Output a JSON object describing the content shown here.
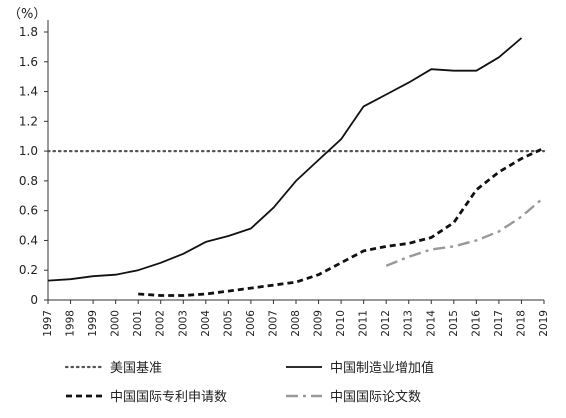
{
  "chart_data": {
    "type": "line",
    "unit_label": "（%）",
    "x": [
      "1997",
      "1998",
      "1999",
      "2000",
      "2001",
      "2002",
      "2003",
      "2004",
      "2005",
      "2006",
      "2007",
      "2008",
      "2009",
      "2010",
      "2011",
      "2012",
      "2013",
      "2014",
      "2015",
      "2016",
      "2017",
      "2018",
      "2019"
    ],
    "ylim": [
      0,
      1.8
    ],
    "y_ticks": [
      "0",
      "0.2",
      "0.4",
      "0.6",
      "0.8",
      "1.0",
      "1.2",
      "1.4",
      "1.6",
      "1.8"
    ],
    "grid": false,
    "legend_position": "bottom",
    "series": [
      {
        "name": "美国基准",
        "style": "dotted",
        "color": "#555555",
        "values": [
          1.0,
          1.0,
          1.0,
          1.0,
          1.0,
          1.0,
          1.0,
          1.0,
          1.0,
          1.0,
          1.0,
          1.0,
          1.0,
          1.0,
          1.0,
          1.0,
          1.0,
          1.0,
          1.0,
          1.0,
          1.0,
          1.0,
          1.0
        ]
      },
      {
        "name": "中国制造业增加值",
        "style": "solid",
        "color": "#111111",
        "values": [
          0.13,
          0.14,
          0.16,
          0.17,
          0.2,
          0.25,
          0.31,
          0.39,
          0.43,
          0.48,
          0.62,
          0.8,
          0.94,
          1.08,
          1.3,
          1.38,
          1.46,
          1.55,
          1.54,
          1.54,
          1.63,
          1.76,
          null
        ]
      },
      {
        "name": "中国国际专利申请数",
        "style": "dashed",
        "color": "#111111",
        "values": [
          null,
          null,
          null,
          null,
          0.04,
          0.03,
          0.03,
          0.04,
          0.06,
          0.08,
          0.1,
          0.12,
          0.17,
          0.25,
          0.33,
          0.36,
          0.38,
          0.42,
          0.52,
          0.74,
          0.86,
          0.95,
          1.02
        ]
      },
      {
        "name": "中国国际论文数",
        "style": "dashdot",
        "color": "#999999",
        "values": [
          null,
          null,
          null,
          null,
          null,
          null,
          null,
          null,
          null,
          null,
          null,
          null,
          null,
          null,
          null,
          0.23,
          0.29,
          0.34,
          0.36,
          0.4,
          0.46,
          0.56,
          0.69
        ]
      }
    ]
  }
}
